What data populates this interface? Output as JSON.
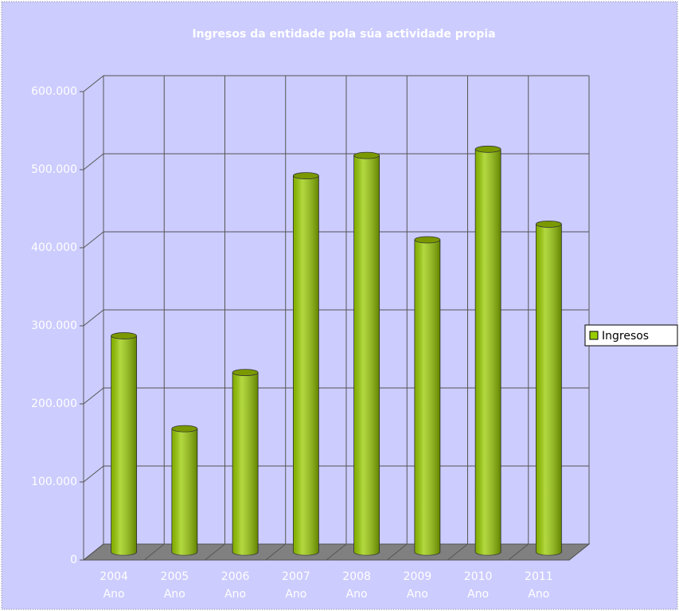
{
  "chart_data": {
    "type": "bar3d",
    "title": "Ingresos da entidade pola súa actividade propia",
    "categories": [
      [
        "2004",
        "Ano"
      ],
      [
        "2005",
        "Ano"
      ],
      [
        "2006",
        "Ano"
      ],
      [
        "2007",
        "Ano"
      ],
      [
        "2008",
        "Ano"
      ],
      [
        "2009",
        "Ano"
      ],
      [
        "2010",
        "Ano"
      ],
      [
        "2011",
        "Ano"
      ]
    ],
    "series": [
      {
        "name": "Ingresos",
        "color": "#99cc00",
        "values": [
          277000,
          158000,
          230000,
          482000,
          508000,
          400000,
          516000,
          420000
        ]
      }
    ],
    "ylim": [
      0,
      600000
    ],
    "yticks": [
      0,
      {
        "value": 100000,
        "label": "100.000"
      },
      {
        "value": 200000,
        "label": "200.000"
      },
      {
        "value": 300000,
        "label": "300.000"
      },
      {
        "value": 400000,
        "label": "400.000"
      },
      {
        "value": 500000,
        "label": "500.000"
      },
      {
        "value": 600000,
        "label": "600.000"
      }
    ],
    "grid": true,
    "legend": "right"
  }
}
